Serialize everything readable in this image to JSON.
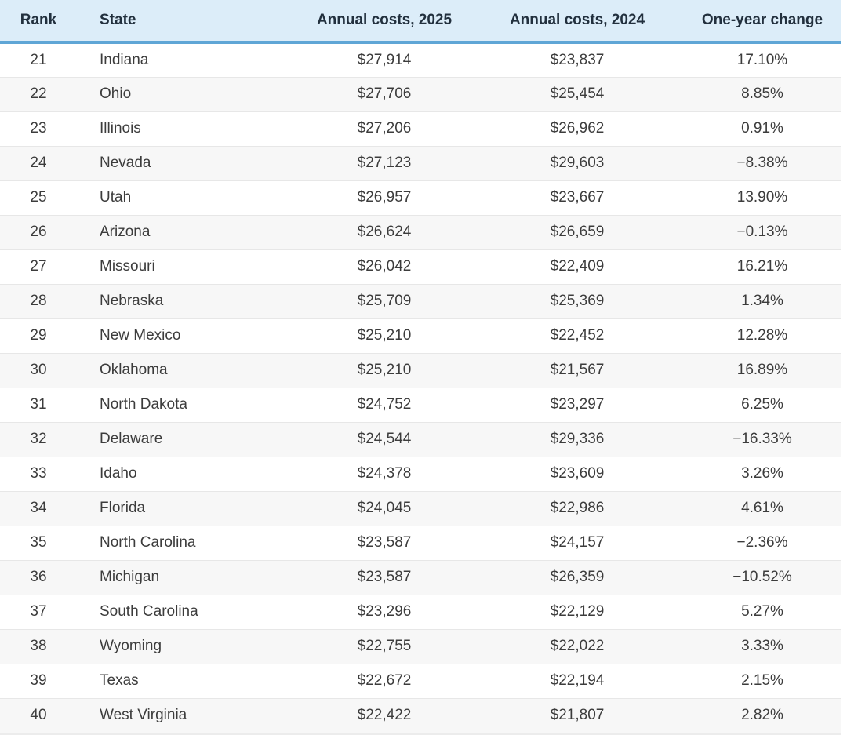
{
  "chart_data": {
    "type": "table",
    "columns": [
      "Rank",
      "State",
      "Annual costs, 2025",
      "Annual costs, 2024",
      "One-year change"
    ],
    "rows": [
      {
        "rank": "21",
        "state": "Indiana",
        "cost_2025": "$27,914",
        "cost_2024": "$23,837",
        "change": "17.10%"
      },
      {
        "rank": "22",
        "state": "Ohio",
        "cost_2025": "$27,706",
        "cost_2024": "$25,454",
        "change": "8.85%"
      },
      {
        "rank": "23",
        "state": "Illinois",
        "cost_2025": "$27,206",
        "cost_2024": "$26,962",
        "change": "0.91%"
      },
      {
        "rank": "24",
        "state": "Nevada",
        "cost_2025": "$27,123",
        "cost_2024": "$29,603",
        "change": "−8.38%"
      },
      {
        "rank": "25",
        "state": "Utah",
        "cost_2025": "$26,957",
        "cost_2024": "$23,667",
        "change": "13.90%"
      },
      {
        "rank": "26",
        "state": "Arizona",
        "cost_2025": "$26,624",
        "cost_2024": "$26,659",
        "change": "−0.13%"
      },
      {
        "rank": "27",
        "state": "Missouri",
        "cost_2025": "$26,042",
        "cost_2024": "$22,409",
        "change": "16.21%"
      },
      {
        "rank": "28",
        "state": "Nebraska",
        "cost_2025": "$25,709",
        "cost_2024": "$25,369",
        "change": "1.34%"
      },
      {
        "rank": "29",
        "state": "New Mexico",
        "cost_2025": "$25,210",
        "cost_2024": "$22,452",
        "change": "12.28%"
      },
      {
        "rank": "30",
        "state": "Oklahoma",
        "cost_2025": "$25,210",
        "cost_2024": "$21,567",
        "change": "16.89%"
      },
      {
        "rank": "31",
        "state": "North Dakota",
        "cost_2025": "$24,752",
        "cost_2024": "$23,297",
        "change": "6.25%"
      },
      {
        "rank": "32",
        "state": "Delaware",
        "cost_2025": "$24,544",
        "cost_2024": "$29,336",
        "change": "−16.33%"
      },
      {
        "rank": "33",
        "state": "Idaho",
        "cost_2025": "$24,378",
        "cost_2024": "$23,609",
        "change": "3.26%"
      },
      {
        "rank": "34",
        "state": "Florida",
        "cost_2025": "$24,045",
        "cost_2024": "$22,986",
        "change": "4.61%"
      },
      {
        "rank": "35",
        "state": "North Carolina",
        "cost_2025": "$23,587",
        "cost_2024": "$24,157",
        "change": "−2.36%"
      },
      {
        "rank": "36",
        "state": "Michigan",
        "cost_2025": "$23,587",
        "cost_2024": "$26,359",
        "change": "−10.52%"
      },
      {
        "rank": "37",
        "state": "South Carolina",
        "cost_2025": "$23,296",
        "cost_2024": "$22,129",
        "change": "5.27%"
      },
      {
        "rank": "38",
        "state": "Wyoming",
        "cost_2025": "$22,755",
        "cost_2024": "$22,022",
        "change": "3.33%"
      },
      {
        "rank": "39",
        "state": "Texas",
        "cost_2025": "$22,672",
        "cost_2024": "$22,194",
        "change": "2.15%"
      },
      {
        "rank": "40",
        "state": "West Virginia",
        "cost_2025": "$22,422",
        "cost_2024": "$21,807",
        "change": "2.82%"
      }
    ]
  },
  "colors": {
    "header_bg": "#dcedf9",
    "header_border": "#5fa6d6",
    "header_text": "#22303e",
    "body_text": "#3c3c3c",
    "row_stripe": "#f7f7f7",
    "row_divider": "#e7e7e7"
  }
}
